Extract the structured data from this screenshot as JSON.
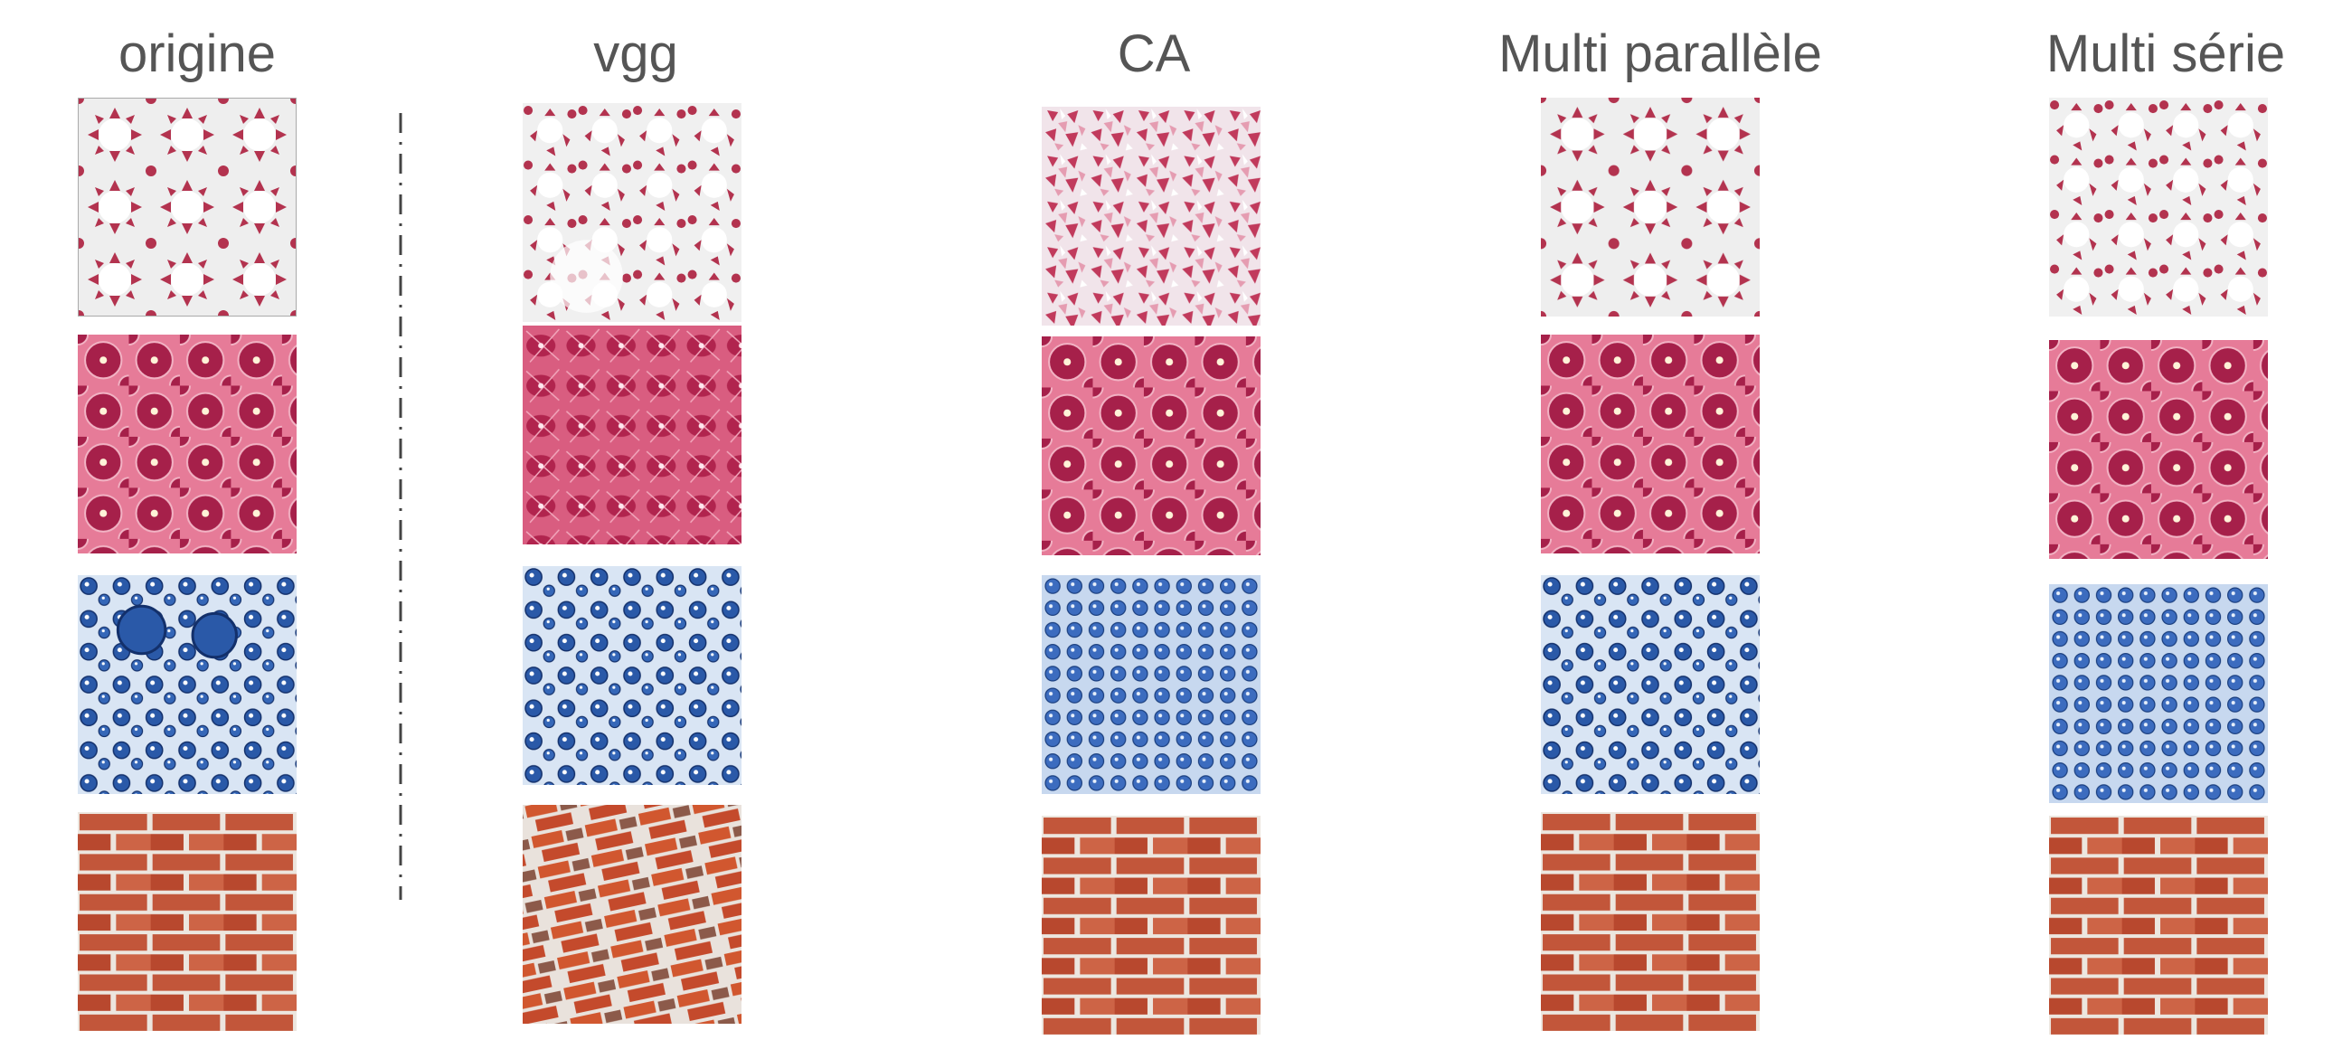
{
  "columns": [
    {
      "id": "origine",
      "title": "origine"
    },
    {
      "id": "vgg",
      "title": "vgg"
    },
    {
      "id": "ca",
      "title": "CA"
    },
    {
      "id": "multi-parallele",
      "title": "Multi parallèle"
    },
    {
      "id": "multi-serie",
      "title": "Multi série"
    }
  ],
  "textures": [
    {
      "id": "star-tile-pattern",
      "colors": {
        "primary": "#b3334f",
        "secondary": "#e8e8e8"
      }
    },
    {
      "id": "pink-cell-pattern",
      "colors": {
        "primary": "#b0254f",
        "secondary": "#e77c98"
      }
    },
    {
      "id": "blue-droplet-pattern",
      "colors": {
        "primary": "#2a59a8",
        "secondary": "#d7e3f3"
      }
    },
    {
      "id": "red-brick-pattern",
      "colors": {
        "primary": "#c2563a",
        "secondary": "#ece6df"
      }
    }
  ]
}
